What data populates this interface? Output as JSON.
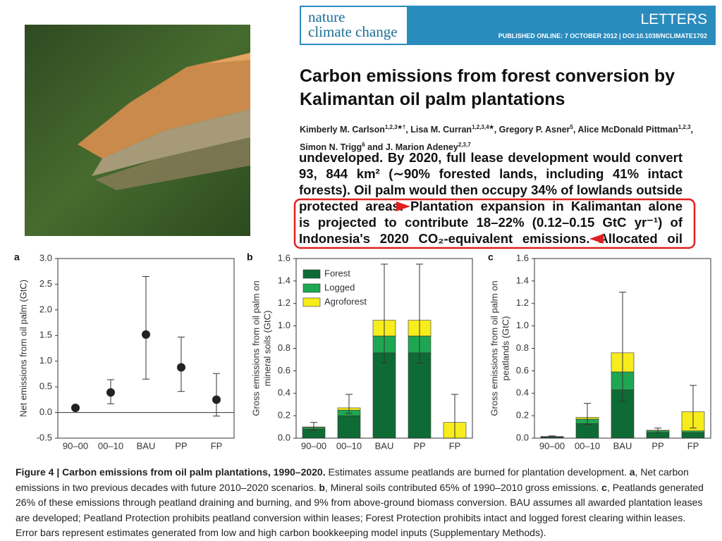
{
  "header": {
    "journal": [
      "nature",
      "climate change"
    ],
    "section": "LETTERS",
    "published": "PUBLISHED ONLINE: 7 OCTOBER 2012 | DOI:10.1038/NCLIMATE1702"
  },
  "title": [
    "Carbon emissions from forest conversion by",
    "Kalimantan oil palm plantations"
  ],
  "authors": [
    {
      "name": "Kimberly M. Carlson",
      "affil": "1,2,3★†"
    },
    {
      "name": "Lisa M. Curran",
      "affil": "1,2,3,4★"
    },
    {
      "name": "Gregory P. Asner",
      "affil": "5"
    },
    {
      "name": "Alice McDonald Pittman",
      "affil": "1,2,3"
    },
    {
      "name": "Simon N. Trigg",
      "affil": "6"
    },
    {
      "name": "J. Marion Adeney",
      "affil": "2,3,7"
    }
  ],
  "excerpt": [
    "undeveloped. By 2020, full lease development would convert",
    "93, 844 km² (∼90% forested lands, including 41% intact",
    "forests). Oil palm would then occupy 34% of lowlands outside",
    "protected areas. Plantation expansion in Kalimantan alone",
    "is projected to contribute 18–22% (0.12–0.15 GtC yr⁻¹) of",
    "Indonesia's 2020 CO₂-equivalent emissions. Allocated oil"
  ],
  "caption": {
    "title": "Figure 4 | Carbon emissions from oil palm plantations, 1990–2020.",
    "segments": [
      " Estimates assume peatlands are burned for plantation development. ",
      "a",
      ", Net carbon emissions in two previous decades with future 2010–2020 scenarios. ",
      "b",
      ", Mineral soils contributed 65% of 1990–2010 gross emissions. ",
      "c",
      ", Peatlands generated 26% of these emissions through peatland draining and burning, and 9% from above-ground biomass conversion. BAU assumes all awarded plantation leases are developed; Peatland Protection prohibits peatland conversion within leases; Forest Protection prohibits intact and logged forest clearing within leases. Error bars represent estimates generated from low and high carbon bookkeeping model inputs (Supplementary Methods)."
    ]
  },
  "chart_data": [
    {
      "type": "scatter",
      "panel": "a",
      "ylabel": [
        "Net emissions from oil palm (GtC)"
      ],
      "categories": [
        "90–00",
        "00–10",
        "BAU",
        "PP",
        "FP"
      ],
      "values": [
        0.09,
        0.39,
        1.52,
        0.88,
        0.25
      ],
      "error_lower": [
        0.05,
        0.17,
        0.65,
        0.41,
        -0.07
      ],
      "error_upper": [
        0.13,
        0.64,
        2.65,
        1.47,
        0.76
      ],
      "color": "#222222",
      "ylim": [
        -0.5,
        3.0
      ],
      "yticks": [
        -0.5,
        {
          "value": 0,
          "label": "0.0"
        },
        0.5,
        {
          "value": 1,
          "label": "1.0"
        },
        1.5,
        {
          "value": 2,
          "label": "2.0"
        },
        2.5,
        {
          "value": 3,
          "label": "3.0"
        }
      ],
      "legend": false
    },
    {
      "type": "stacked_bar",
      "panel": "b",
      "ylabel": [
        "Gross emissions from oil palm on",
        "mineral soils (GtC)"
      ],
      "categories": [
        "90–00",
        "00–10",
        "BAU",
        "PP",
        "FP"
      ],
      "series": [
        {
          "name": "Forest",
          "color": "#0f6b35",
          "values": [
            0.08,
            0.2,
            0.76,
            0.76,
            0
          ]
        },
        {
          "name": "Logged",
          "color": "#1fa652",
          "values": [
            0.015,
            0.05,
            0.15,
            0.15,
            0
          ]
        },
        {
          "name": "Agroforest",
          "color": "#f7ec1c",
          "values": [
            0.005,
            0.02,
            0.14,
            0.14,
            0.14
          ]
        }
      ],
      "error_lower": [
        0.07,
        0.22,
        0.67,
        0.67,
        0
      ],
      "error_upper": [
        0.14,
        0.39,
        1.55,
        1.55,
        0.39
      ],
      "ylim": [
        0,
        1.6
      ],
      "yticks": [
        {
          "value": 0,
          "label": "0.0"
        },
        0.2,
        0.4,
        0.6,
        0.8,
        {
          "value": 1,
          "label": "1.0"
        },
        1.2,
        1.4,
        1.6
      ],
      "legend": true
    },
    {
      "type": "stacked_bar",
      "panel": "c",
      "ylabel": [
        "Gross emissions from oil palm on",
        "peatlands (GtC)"
      ],
      "categories": [
        "90–00",
        "00–10",
        "BAU",
        "PP",
        "FP"
      ],
      "series": [
        {
          "name": "Forest",
          "color": "#0f6b35",
          "values": [
            0.01,
            0.13,
            0.43,
            0.05,
            0.05
          ]
        },
        {
          "name": "Logged",
          "color": "#1fa652",
          "values": [
            0.003,
            0.04,
            0.16,
            0.015,
            0.015
          ]
        },
        {
          "name": "Agroforest",
          "color": "#f7ec1c",
          "values": [
            0.002,
            0.015,
            0.17,
            0.005,
            0.17
          ]
        }
      ],
      "error_lower": [
        0.01,
        0.12,
        0.33,
        0.05,
        0.09
      ],
      "error_upper": [
        0.02,
        0.31,
        1.3,
        0.09,
        0.47
      ],
      "ylim": [
        0,
        1.6
      ],
      "yticks": [
        {
          "value": 0,
          "label": "0.0"
        },
        0.2,
        0.4,
        0.6,
        0.8,
        {
          "value": 1,
          "label": "1.0"
        },
        1.2,
        1.4,
        1.6
      ],
      "legend": false
    }
  ]
}
